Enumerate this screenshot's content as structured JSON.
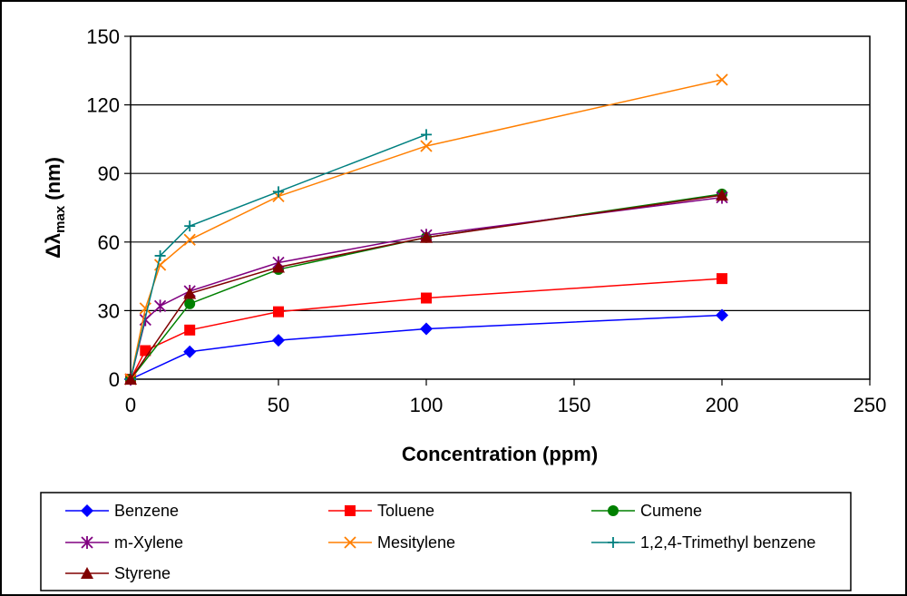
{
  "chart_data": {
    "type": "line",
    "xlabel": "Concentration (ppm)",
    "ylabel_main": "Δλ",
    "ylabel_sub": "max",
    "ylabel_unit": " (nm)",
    "xlim": [
      0,
      250
    ],
    "ylim": [
      0,
      150
    ],
    "xticks": [
      0,
      50,
      100,
      150,
      200,
      250
    ],
    "yticks": [
      0,
      30,
      60,
      90,
      120,
      150
    ],
    "grid": "horizontal",
    "legend_position": "bottom",
    "series": [
      {
        "name": "Benzene",
        "color": "#0000ff",
        "marker": "diamond",
        "x": [
          0,
          20,
          50,
          100,
          200
        ],
        "y": [
          0,
          12,
          17,
          22,
          28
        ]
      },
      {
        "name": "Toluene",
        "color": "#ff0000",
        "marker": "square",
        "x": [
          0,
          5,
          20,
          50,
          100,
          200
        ],
        "y": [
          0,
          12.5,
          21.5,
          29.5,
          35.5,
          44
        ]
      },
      {
        "name": "Cumene",
        "color": "#008000",
        "marker": "circle",
        "x": [
          0,
          20,
          50,
          100,
          200
        ],
        "y": [
          0,
          33,
          48,
          62,
          81
        ]
      },
      {
        "name": "m-Xylene",
        "color": "#800080",
        "marker": "asterisk",
        "x": [
          0,
          5,
          10,
          20,
          50,
          100,
          200
        ],
        "y": [
          0,
          26,
          32,
          38.5,
          51,
          63,
          79.5
        ]
      },
      {
        "name": "Mesitylene",
        "color": "#ff7f00",
        "marker": "x",
        "x": [
          0,
          5,
          10,
          20,
          50,
          100,
          200
        ],
        "y": [
          0,
          31,
          50,
          61,
          80,
          102,
          131
        ]
      },
      {
        "name": "1,2,4-Trimethyl benzene",
        "color": "#008080",
        "marker": "plus",
        "x": [
          0,
          10,
          20,
          50,
          100
        ],
        "y": [
          0,
          54,
          67,
          82,
          107
        ]
      },
      {
        "name": "Styrene",
        "color": "#800000",
        "marker": "triangle",
        "x": [
          0,
          20,
          50,
          100,
          200
        ],
        "y": [
          0,
          37.5,
          49,
          62,
          80.5
        ]
      }
    ]
  }
}
